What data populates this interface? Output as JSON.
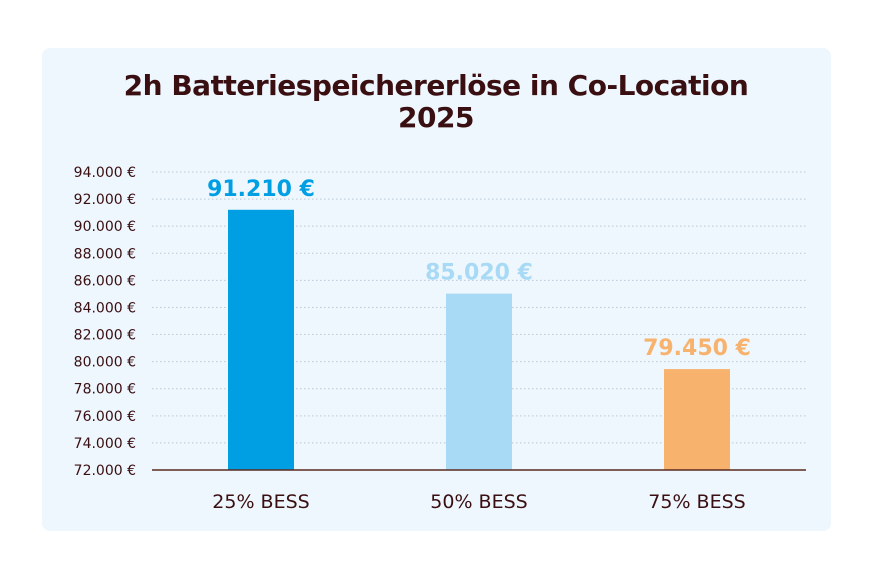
{
  "chart_data": {
    "type": "bar",
    "title": "2h Batteriespeichererlöse in Co-Location",
    "subtitle": "2025",
    "categories": [
      "25% BESS",
      "50% BESS",
      "75% BESS"
    ],
    "values": [
      91210,
      85020,
      79450
    ],
    "data_labels": [
      "91.210 €",
      "85.020 €",
      "79.450 €"
    ],
    "bar_colors": [
      "#009fe3",
      "#a8daf5",
      "#f7b26e"
    ],
    "ylim": [
      72000,
      94000
    ],
    "ytick_step": 2000,
    "ytick_labels": [
      "72.000 €",
      "74.000 €",
      "76.000 €",
      "78.000 €",
      "80.000 €",
      "82.000 €",
      "84.000 €",
      "86.000 €",
      "88.000 €",
      "90.000 €",
      "92.000 €",
      "94.000 €"
    ],
    "xlabel": "",
    "ylabel": "",
    "grid": true,
    "legend": false
  },
  "colors": {
    "card_background": "#eef7fd",
    "text_dark": "#3a0f12",
    "axis": "#5a2a20",
    "grid": "#bcc8d4"
  }
}
